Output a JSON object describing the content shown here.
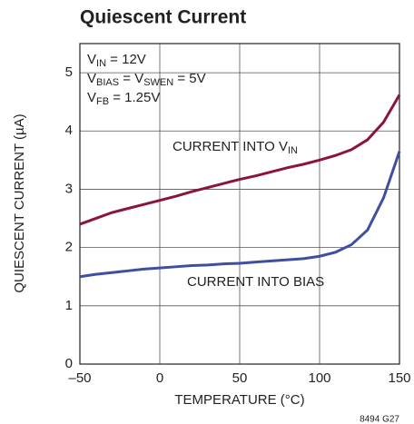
{
  "chart_data": {
    "type": "line",
    "title": "Quiescent Current",
    "x_label": "TEMPERATURE (°C)",
    "y_label": "QUIESCENT CURRENT (µA)",
    "figure_id": "8494 G27",
    "annotations": [
      [
        "V",
        "IN",
        " = 12V"
      ],
      [
        "V",
        "BIAS",
        " = V",
        "SWEN",
        " = 5V"
      ],
      [
        "V",
        "FB",
        " = 1.25V"
      ]
    ],
    "curve_labels": [
      [
        "CURRENT INTO V",
        "IN"
      ],
      [
        "CURRENT INTO BIAS"
      ]
    ],
    "x": [
      -50,
      -40,
      -30,
      -20,
      -10,
      0,
      10,
      20,
      30,
      40,
      50,
      60,
      70,
      80,
      90,
      100,
      110,
      120,
      130,
      140,
      150
    ],
    "series": [
      {
        "name": "CURRENT INTO VIN",
        "color": "#8b1538",
        "values": [
          2.4,
          2.5,
          2.6,
          2.67,
          2.74,
          2.81,
          2.88,
          2.96,
          3.03,
          3.1,
          3.17,
          3.23,
          3.3,
          3.37,
          3.43,
          3.5,
          3.58,
          3.68,
          3.85,
          4.15,
          4.62
        ]
      },
      {
        "name": "CURRENT INTO BIAS",
        "color": "#3f4fa0",
        "values": [
          1.5,
          1.54,
          1.57,
          1.6,
          1.63,
          1.65,
          1.67,
          1.69,
          1.7,
          1.72,
          1.73,
          1.75,
          1.77,
          1.79,
          1.81,
          1.85,
          1.92,
          2.05,
          2.3,
          2.85,
          3.65
        ]
      }
    ],
    "xlim": [
      -50,
      150
    ],
    "xticks": [
      {
        "value": -50,
        "label": "–50"
      },
      0,
      50,
      100,
      150
    ],
    "ylim": [
      0,
      5.5
    ],
    "yticks": [
      0,
      1,
      2,
      3,
      4,
      5
    ],
    "grid": true
  }
}
